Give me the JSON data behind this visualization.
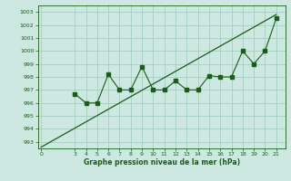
{
  "xlabel": "Graphe pression niveau de la mer (hPa)",
  "background_color": "#cce8e0",
  "line_color": "#1a5c1a",
  "grid_color": "#99ccbb",
  "ylim": [
    992.5,
    1003.5
  ],
  "xlim": [
    -0.3,
    21.8
  ],
  "yticks": [
    993,
    994,
    995,
    996,
    997,
    998,
    999,
    1000,
    1001,
    1002,
    1003
  ],
  "xticks": [
    0,
    3,
    4,
    5,
    6,
    7,
    8,
    9,
    10,
    11,
    12,
    13,
    14,
    15,
    16,
    17,
    18,
    19,
    20,
    21
  ],
  "data_x": [
    3,
    4,
    5,
    6,
    7,
    8,
    9,
    10,
    11,
    12,
    13,
    14,
    15,
    16,
    17,
    18,
    19,
    20,
    21
  ],
  "data_y": [
    996.7,
    996.0,
    996.0,
    998.2,
    997.0,
    997.0,
    998.8,
    997.0,
    997.0,
    997.7,
    997.0,
    997.0,
    998.1,
    998.0,
    998.0,
    1000.0,
    999.0,
    1000.0,
    1002.5
  ],
  "trend_x": [
    0,
    21
  ],
  "trend_y": [
    992.6,
    1002.8
  ]
}
